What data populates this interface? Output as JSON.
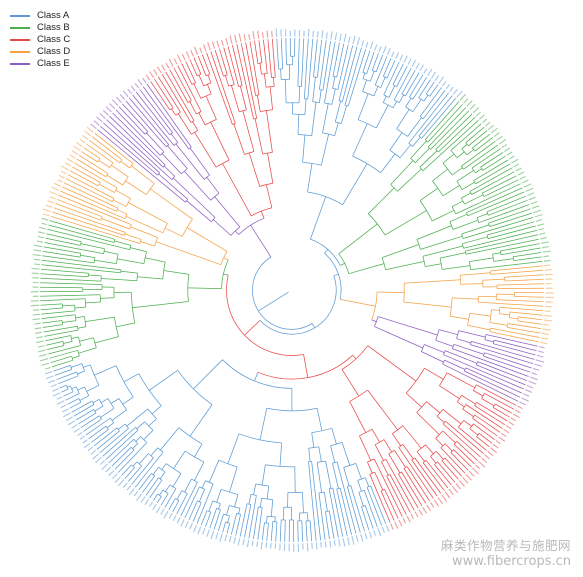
{
  "legend": {
    "items": [
      {
        "label": "Class A",
        "color": "#5b9bd5"
      },
      {
        "label": "Class B",
        "color": "#4caf50"
      },
      {
        "label": "Class C",
        "color": "#e84a4a"
      },
      {
        "label": "Class D",
        "color": "#f5a043"
      },
      {
        "label": "Class E",
        "color": "#8e5fc2"
      }
    ]
  },
  "tree": {
    "type": "circular-dendrogram",
    "clades": [
      {
        "class": "Class A",
        "leaves": 44
      },
      {
        "class": "Class B",
        "leaves": 42
      },
      {
        "class": "Class D",
        "leaves": 18
      },
      {
        "class": "Class E",
        "leaves": 14
      },
      {
        "class": "Class C",
        "leaves": 40
      },
      {
        "class": "Class A",
        "leaves": 92
      },
      {
        "class": "Class B",
        "leaves": 34
      },
      {
        "class": "Class D",
        "leaves": 22
      },
      {
        "class": "Class E",
        "leaves": 16
      },
      {
        "class": "Class C",
        "leaves": 30
      }
    ]
  },
  "watermark": {
    "title": "麻类作物营养与施肥网",
    "url": "www.fibercrops.cn"
  }
}
